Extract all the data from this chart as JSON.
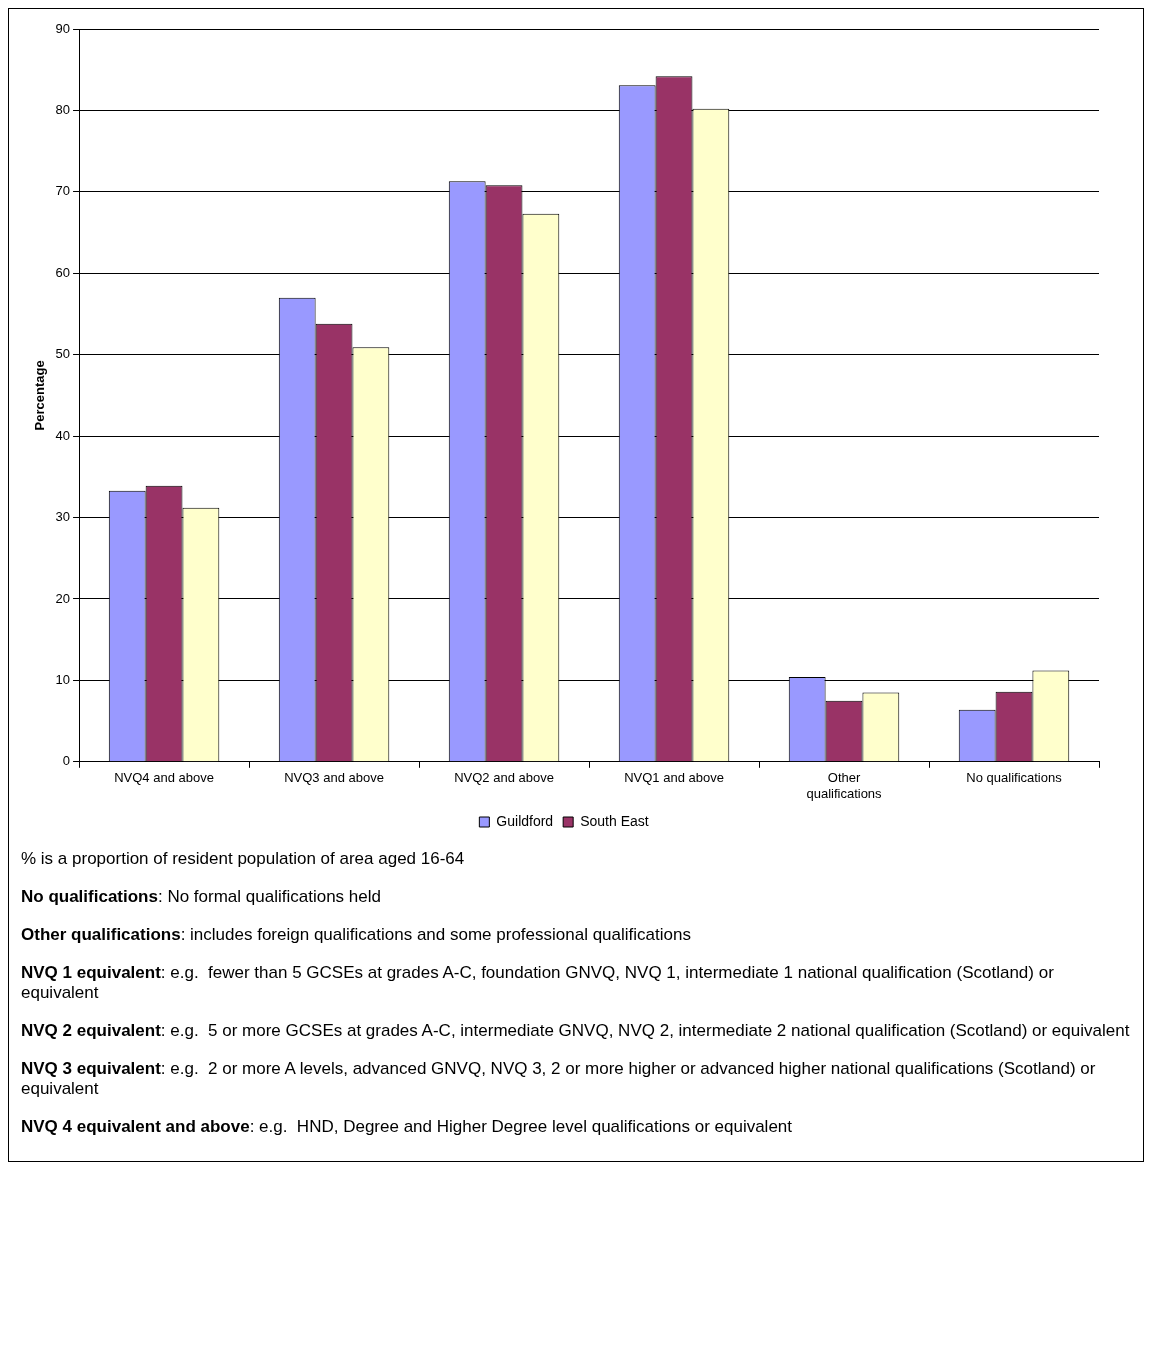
{
  "chart_data": {
    "type": "bar",
    "ylabel": "Percentage",
    "categories": [
      "NVQ4 and above",
      "NVQ3 and above",
      "NVQ2 and above",
      "NVQ1 and above",
      "Other qualifications",
      "No qualifications"
    ],
    "series": [
      {
        "name": "Guildford",
        "color": "#9999ff",
        "values": [
          33.3,
          57.0,
          71.3,
          83.1,
          10.4,
          6.4
        ]
      },
      {
        "name": "South East",
        "color": "#993366",
        "values": [
          33.9,
          53.8,
          70.8,
          84.2,
          7.5,
          8.6
        ]
      },
      {
        "color": "#ffffcc",
        "values": [
          31.2,
          50.9,
          67.3,
          80.2,
          8.5,
          11.2
        ]
      }
    ],
    "ylim": [
      0,
      90
    ],
    "yticks": [
      0,
      10,
      20,
      30,
      40,
      50,
      60,
      70,
      80,
      90
    ],
    "grid": "y",
    "legend": "bottom",
    "annotations": [
      "% is a proportion of resident population of area aged 16-64",
      "No qualifications: No formal qualifications held",
      "Other qualifications: includes foreign qualifications and some professional qualifications",
      "NVQ 1 equivalent: e.g.  fewer than 5 GCSEs at grades A-C, foundation GNVQ, NVQ 1, intermediate 1 national qualification (Scotland) or equivalent",
      "NVQ 2 equivalent: e.g.  5 or more GCSEs at grades A-C, intermediate GNVQ, NVQ 2, intermediate 2 national qualification (Scotland) or equivalent",
      "NVQ 3 equivalent: e.g.  2 or more A levels, advanced GNVQ, NVQ 3, 2 or more higher or advanced higher national qualifications (Scotland) or equivalent",
      "NVQ 4 equivalent and above: e.g.  HND, Degree and Higher Degree level qualifications or equivalent"
    ]
  }
}
